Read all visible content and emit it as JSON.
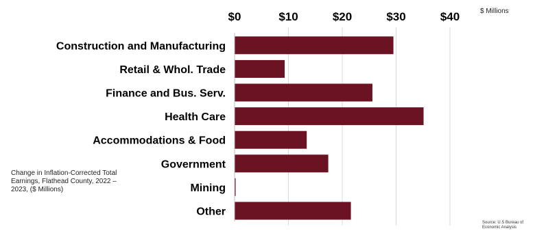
{
  "notes": {
    "units": "$ Millions",
    "description": "Change in Inflation-Corrected Total Earnings, Flathead County, 2022 – 2023, ($ Millions)",
    "source": "Source: U.S Bureau of Economic Analysis"
  },
  "chart_data": {
    "type": "bar",
    "orientation": "horizontal",
    "categories": [
      "Construction and Manufacturing",
      "Retail & Whol. Trade",
      "Finance and Bus. Serv.",
      "Health Care",
      "Accommodations & Food",
      "Government",
      "Mining",
      "Other"
    ],
    "values": [
      29.5,
      9.3,
      25.6,
      35.1,
      13.4,
      17.4,
      0.2,
      21.6
    ],
    "xlim": [
      0,
      40
    ],
    "xticks": [
      0,
      10,
      20,
      30,
      40
    ],
    "xtick_labels": [
      "$0",
      "$10",
      "$20",
      "$30",
      "$40"
    ],
    "grid": true,
    "axis_position": "top",
    "bar_color": "#6b1322",
    "grid_color": "#d9d9d9"
  }
}
